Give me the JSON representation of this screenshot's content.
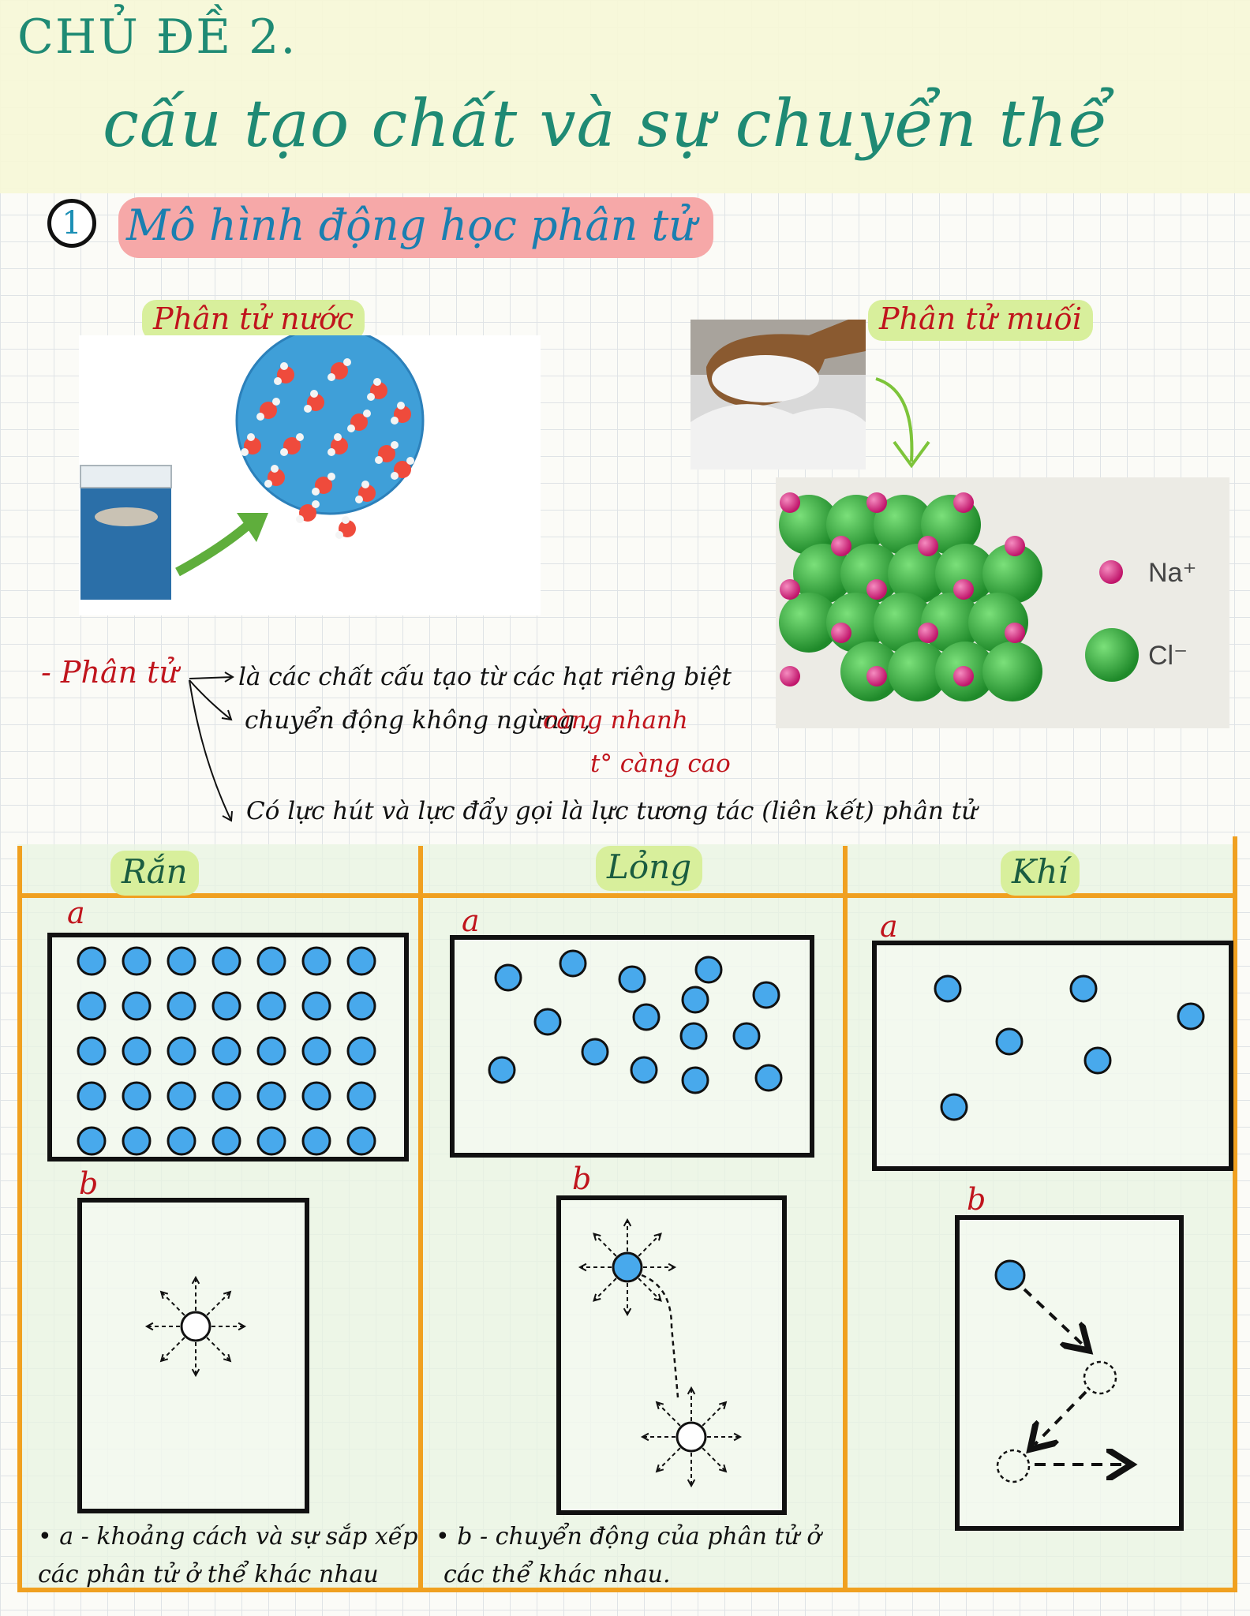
{
  "header": {
    "chapter": "CHỦ ĐỀ 2.",
    "title": "cấu tạo chất và sự chuyển thể"
  },
  "section": {
    "number": "1",
    "title": "Mô hình động học phân tử"
  },
  "images": {
    "water_label": "Phân tử nước",
    "salt_label": "Phân tử muối",
    "legend": {
      "na": "Na⁺",
      "cl": "Cl⁻"
    },
    "colors": {
      "na": "#d6287a",
      "cl": "#34a83a",
      "water_o": "#ef4b3c",
      "water_bg": "#3f9fd8"
    }
  },
  "notes": {
    "subject": "- Phân tử",
    "point1": "là các chất cấu tạo từ các hạt riêng biệt",
    "point2": "chuyển động không ngừng ,",
    "point2_red": "càng nhanh",
    "point2_sub": "t° càng cao",
    "point3": "Có lực hút và lực đẩy gọi là lực tương tác (liên kết) phân tử"
  },
  "states": {
    "solid": {
      "label": "Rắn",
      "a": "a",
      "b": "b"
    },
    "liquid": {
      "label": "Lỏng",
      "a": "a",
      "b": "b"
    },
    "gas": {
      "label": "Khí",
      "a": "a",
      "b": "b"
    }
  },
  "captions": {
    "a_line1": "• a - khoảng cách và sự sắp xếp",
    "a_line2": "các phân tử ở thể khác nhau",
    "b_line1": "• b - chuyển động của phân tử ở",
    "b_line2": "các thể khác nhau."
  },
  "palette": {
    "particle": "#48a9ec",
    "orange": "#f0a020",
    "teal": "#1f8a74",
    "red": "#c0141c"
  }
}
